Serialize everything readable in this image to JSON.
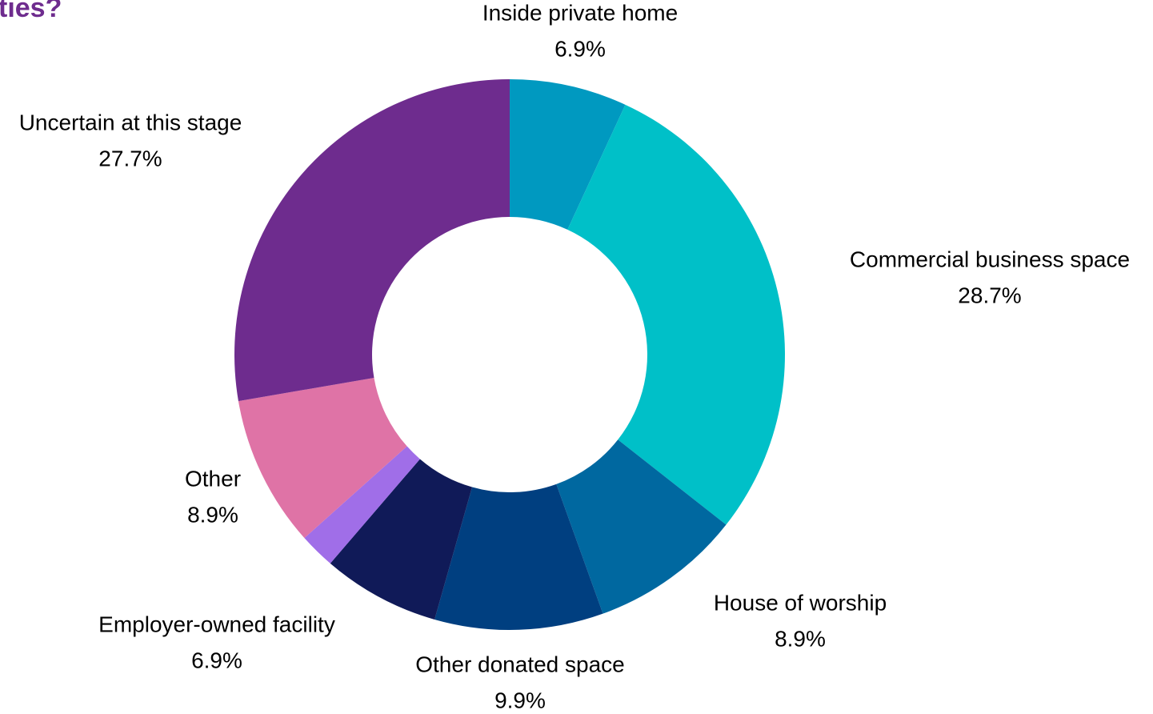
{
  "chart_data": {
    "type": "donut",
    "title": "ties?",
    "categories": [
      "Inside private home",
      "Commercial business space",
      "House of worship",
      "Other donated space",
      "Employer-owned facility",
      null,
      "Other",
      "Uncertain at this stage"
    ],
    "values": [
      6.9,
      28.7,
      8.9,
      9.9,
      6.9,
      2.1,
      8.9,
      27.7
    ],
    "value_labels": [
      "6.9%",
      "28.7%",
      "8.9%",
      "9.9%",
      "6.9%",
      null,
      "8.9%",
      "27.7%"
    ],
    "colors": [
      "#0099c0",
      "#00c0c8",
      "#0068a0",
      "#003f80",
      "#101a58",
      "#a06ee8",
      "#df73a6",
      "#6e2c8e"
    ]
  }
}
